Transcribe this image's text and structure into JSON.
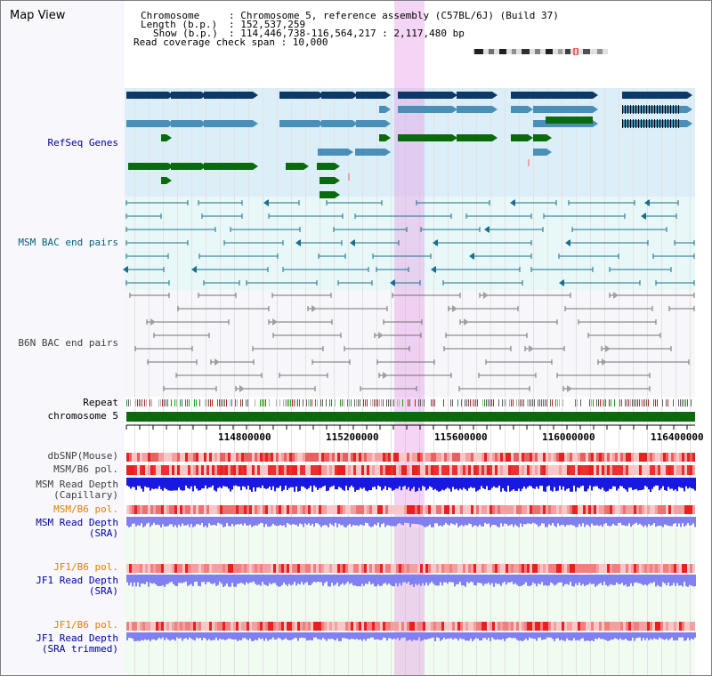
{
  "title": "Map View",
  "header": {
    "chromosome_key": "Chromosome",
    "chromosome_val": ": Chromosome 5, reference assembly (C57BL/6J) (Build 37)",
    "length_key": "Length (b.p.)",
    "length_val": ": 152,537,259",
    "show_key": "Show (b.p.)",
    "show_val": ": 114,446,738-116,564,217 : 2,117,480 bp",
    "coverage": "Read coverage check span : 10,000"
  },
  "tracks": {
    "refseq": "RefSeq Genes",
    "msm_bac": "MSM BAC end pairs",
    "b6n_bac": "B6N BAC end pairs",
    "repeat": "Repeat",
    "chromosome": "chromosome 5",
    "dbsnp": "dbSNP(Mouse)",
    "msm_pol1": "MSM/B6 pol.",
    "msm_rd_cap_1": "MSM Read Depth",
    "msm_rd_cap_2": "(Capillary)",
    "msm_pol2": "MSM/B6 pol.",
    "msm_rd_sra_1": "MSM Read Depth",
    "msm_rd_sra_2": "(SRA)",
    "jf1_pol1": "JF1/B6 pol.",
    "jf1_rd_1": "JF1 Read Depth",
    "jf1_rd_2": "(SRA)",
    "jf1_pol2": "JF1/B6 pol.",
    "jf1_rdt_1": "JF1 Read Depth",
    "jf1_rdt_2": "(SRA trimmed)"
  },
  "axis": {
    "ticks": [
      "114800000",
      "115200000",
      "115600000",
      "116000000",
      "116400000"
    ]
  },
  "colors": {
    "gene_navy": "#0e3866",
    "gene_steel": "#4a8fb8",
    "gene_green": "#0b6a0b",
    "msm_bac": "#1a6f8c",
    "b6n_bac": "#707070",
    "chrom": "#0b6a0b",
    "depth_blue": "#1818e0",
    "depth_lav": "#8080f0",
    "pol_red": "#e83030",
    "highlight": "#e898e8"
  }
}
